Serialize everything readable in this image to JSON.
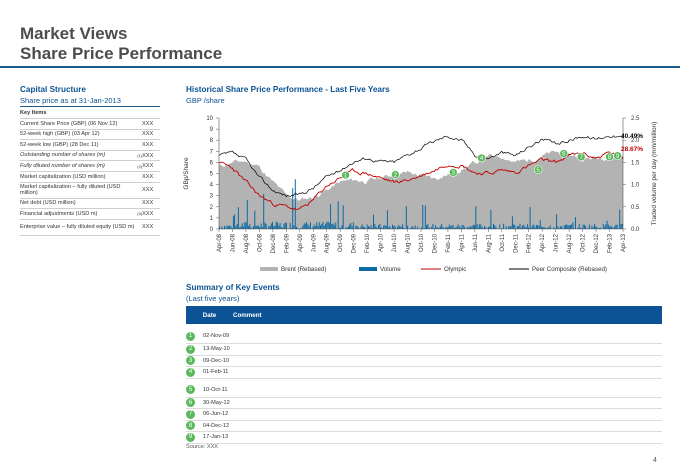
{
  "header": {
    "title": "Market Views",
    "subtitle": "Share Price Performance"
  },
  "capital_structure": {
    "title": "Capital Structure",
    "subtitle": "Share price as at 31-Jan-2013",
    "table_header": "Key Items",
    "rows": [
      {
        "label": "Current Share Price (GBP) (06 Nov 12)",
        "value": "XXX",
        "italic": false
      },
      {
        "label": "52-week high (GBP) (03 Apr 12)",
        "value": "XXX",
        "italic": false
      },
      {
        "label": "52-week low (GBP) (28 Dec 11)",
        "value": "XXX",
        "italic": false
      },
      {
        "label": "Outstanding number of shares (m)",
        "sup": "(1)",
        "value": "XXX",
        "italic": true
      },
      {
        "label": "Fully diluted number of shares (m)",
        "sup": "(2)",
        "value": "XXX",
        "italic": true
      },
      {
        "label": "Market capitalization (USD million)",
        "value": "XXX",
        "italic": false
      },
      {
        "label": "Market capitalization – fully diluted (USD million)",
        "value": "XXX",
        "italic": false
      },
      {
        "label": "Net debt (USD million)",
        "value": "XXX",
        "italic": false
      },
      {
        "label": "Financial adjustments (USD m)",
        "sup": "(3)",
        "value": "XXX",
        "italic": false
      },
      {
        "label": "Enterprise value – fully diluted equity (USD m)",
        "value": "XXX",
        "italic": false
      }
    ]
  },
  "historical": {
    "title": "Historical Share Price Performance - Last Five Years",
    "subtitle": "GBP /share"
  },
  "chart_data": {
    "type": "line",
    "ylabel": "GBp/Share",
    "y2label": "Traded volume per day (mm/million)",
    "ylim": [
      0,
      10
    ],
    "y_ticks": [
      0,
      1,
      2,
      3,
      4,
      5,
      6,
      7,
      8,
      9,
      10
    ],
    "y2lim": [
      0,
      2.5
    ],
    "y2_ticks": [
      "0.0",
      "0.5",
      "1.0",
      "1.5",
      "2.0",
      "2.5"
    ],
    "x_ticks": [
      "Apr-08",
      "Jun-08",
      "Aug-08",
      "Oct-08",
      "Dec-08",
      "Feb-09",
      "Apr-09",
      "Jun-09",
      "Aug-09",
      "Oct-09",
      "Dec-09",
      "Feb-10",
      "Apr-10",
      "Jun-10",
      "Aug-10",
      "Oct-10",
      "Dec-10",
      "Feb-11",
      "Apr-11",
      "Jun-11",
      "Aug-11",
      "Oct-11",
      "Dec-11",
      "Feb-12",
      "Apr-12",
      "Jun-12",
      "Aug-12",
      "Oct-12",
      "Dec-12",
      "Feb-13",
      "Apr-13"
    ],
    "legend": [
      "Brent (Rebased)",
      "Volume",
      "Olympic",
      "Peer Composite (Rebased)"
    ],
    "legend_placement": "bottom",
    "colors": {
      "brent": "#b3b3b3",
      "volume": "#0b6aa2",
      "olympic": "#c00000",
      "peer": "#000000"
    },
    "end_labels": [
      "40.49%",
      "28.67%"
    ],
    "series": [
      {
        "name": "Brent (Rebased)",
        "values": [
          5.6,
          6.0,
          6.1,
          5.6,
          4.2,
          3.0,
          2.6,
          2.9,
          3.5,
          4.2,
          4.4,
          4.3,
          4.6,
          4.9,
          5.1,
          4.8,
          4.6,
          4.9,
          5.4,
          5.9,
          6.5,
          6.6,
          6.0,
          6.2,
          6.6,
          6.9,
          6.7,
          6.3,
          6.4,
          6.6,
          6.5
        ]
      },
      {
        "name": "Olympic",
        "values": [
          6.0,
          5.5,
          4.2,
          3.0,
          2.3,
          2.0,
          1.7,
          2.6,
          3.9,
          4.6,
          5.2,
          5.0,
          4.6,
          4.2,
          4.4,
          4.8,
          5.3,
          5.9,
          5.8,
          5.1,
          5.0,
          5.3,
          5.1,
          5.7,
          6.2,
          6.0,
          6.6,
          6.8,
          6.4,
          6.9,
          6.3
        ]
      },
      {
        "name": "Peer Composite (Rebased)",
        "values": [
          6.6,
          6.8,
          6.2,
          4.6,
          3.5,
          3.0,
          3.1,
          3.7,
          4.7,
          5.3,
          6.1,
          6.4,
          6.1,
          6.0,
          6.7,
          7.3,
          7.9,
          8.4,
          8.0,
          6.7,
          6.4,
          6.9,
          6.6,
          7.4,
          8.1,
          7.6,
          8.0,
          8.4,
          8.1,
          8.5,
          8.2
        ]
      }
    ],
    "volume_note": "daily traded volume bars, right axis",
    "event_markers": [
      {
        "id": "1",
        "x_index": 9.4,
        "y": 4.85
      },
      {
        "id": "2",
        "x_index": 13.1,
        "y": 4.9
      },
      {
        "id": "3",
        "x_index": 17.4,
        "y": 5.1
      },
      {
        "id": "4",
        "x_index": 19.5,
        "y": 6.4
      },
      {
        "id": "5",
        "x_index": 23.7,
        "y": 5.35
      },
      {
        "id": "6",
        "x_index": 25.6,
        "y": 6.8
      },
      {
        "id": "7",
        "x_index": 26.9,
        "y": 6.5
      },
      {
        "id": "8",
        "x_index": 29.0,
        "y": 6.5
      },
      {
        "id": "9",
        "x_index": 29.6,
        "y": 6.6
      }
    ]
  },
  "key_events": {
    "title": "Summary of Key Events",
    "subtitle": "(Last five years)",
    "col_date": "Date",
    "col_comment": "Comment",
    "rows": [
      {
        "num": "1",
        "date": "02-Nov-09",
        "comment": ""
      },
      {
        "num": "2",
        "date": "13-May-10",
        "comment": ""
      },
      {
        "num": "3",
        "date": "09-Dec-10",
        "comment": ""
      },
      {
        "num": "4",
        "date": "01-Feb-11",
        "comment": ""
      },
      {
        "num": "5",
        "date": "10-Oct-11",
        "comment": ""
      },
      {
        "num": "6",
        "date": "30-May-12",
        "comment": ""
      },
      {
        "num": "7",
        "date": "06-Jun-12",
        "comment": ""
      },
      {
        "num": "8",
        "date": "04-Dec-12",
        "comment": ""
      },
      {
        "num": "9",
        "date": "17-Jan-13",
        "comment": ""
      }
    ]
  },
  "footer": {
    "source": "Source: XXX",
    "page": "4"
  }
}
